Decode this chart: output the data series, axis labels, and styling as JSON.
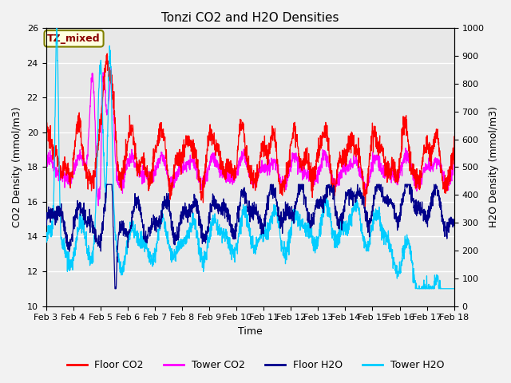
{
  "title": "Tonzi CO2 and H2O Densities",
  "xlabel": "Time",
  "ylabel_left": "CO2 Density (mmol/m3)",
  "ylabel_right": "H2O Density (mmol/m3)",
  "ylim_left": [
    10,
    26
  ],
  "ylim_right": [
    0,
    1000
  ],
  "yticks_left": [
    10,
    12,
    14,
    16,
    18,
    20,
    22,
    24,
    26
  ],
  "yticks_right": [
    0,
    100,
    200,
    300,
    400,
    500,
    600,
    700,
    800,
    900,
    1000
  ],
  "xtick_labels": [
    "Feb 3",
    "Feb 4",
    "Feb 5",
    "Feb 6",
    "Feb 7",
    "Feb 8",
    "Feb 9",
    "Feb 10",
    "Feb 11",
    "Feb 12",
    "Feb 13",
    "Feb 14",
    "Feb 15",
    "Feb 16",
    "Feb 17",
    "Feb 18"
  ],
  "annotation_text": "TZ_mixed",
  "colors": {
    "floor_co2": "#FF0000",
    "tower_co2": "#FF00FF",
    "floor_h2o": "#00008B",
    "tower_h2o": "#00CCFF"
  },
  "legend": [
    "Floor CO2",
    "Tower CO2",
    "Floor H2O",
    "Tower H2O"
  ],
  "background_color": "#E8E8E8",
  "grid_color": "#FFFFFF",
  "title_fontsize": 11,
  "axis_fontsize": 9,
  "tick_fontsize": 8
}
